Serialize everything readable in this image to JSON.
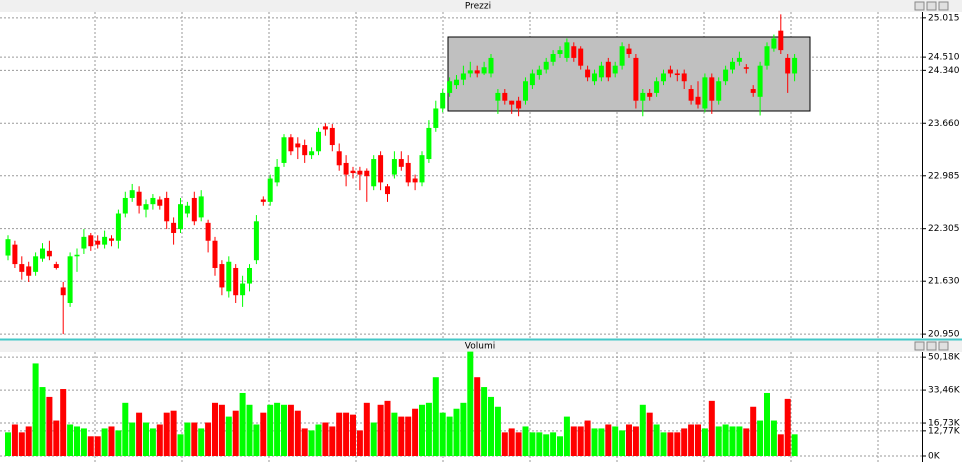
{
  "chart_data": [
    {
      "type": "candlestick",
      "title": "Prezzi",
      "open": [
        21.96,
        22.1,
        21.85,
        21.82,
        21.75,
        21.92,
        22.02,
        21.85,
        21.55,
        21.35,
        21.95,
        22.05,
        22.22,
        22.15,
        22.1,
        22.18,
        22.15,
        22.5,
        22.7,
        22.78,
        22.55,
        22.62,
        22.68,
        22.7,
        22.38,
        22.3,
        22.5,
        22.7,
        22.45,
        22.38,
        22.15,
        21.85,
        21.5,
        21.8,
        21.45,
        21.6,
        21.9,
        22.68,
        22.65,
        22.9,
        23.15,
        23.48,
        23.4,
        23.38,
        23.25,
        23.3,
        23.62,
        23.6,
        23.3,
        23.15,
        23.05,
        23.05,
        23.05,
        22.85,
        23.25,
        22.85,
        23.0,
        23.2,
        23.15,
        22.95,
        22.9,
        23.2,
        23.6,
        23.85,
        24.05,
        24.15,
        24.22,
        24.3,
        24.34,
        24.3,
        24.3,
        23.95,
        24.05,
        23.95,
        23.95,
        23.95,
        24.15,
        24.28,
        24.35,
        24.45,
        24.55,
        24.5,
        24.65,
        24.62,
        24.35,
        24.2,
        24.25,
        24.45,
        24.3,
        24.4,
        24.62,
        24.5,
        23.95,
        24.05,
        24.05,
        24.2,
        24.35,
        24.3,
        24.3,
        24.1,
        24.0,
        23.85,
        24.25,
        23.95,
        24.2,
        24.35,
        24.45,
        24.38,
        24.1,
        24.0,
        24.4,
        24.62,
        24.85,
        24.5,
        24.3
      ],
      "high": [
        22.22,
        22.15,
        21.95,
        21.88,
        22.0,
        22.12,
        22.15,
        21.88,
        21.62,
        22.0,
        22.05,
        22.3,
        22.25,
        22.22,
        22.28,
        22.22,
        22.55,
        22.78,
        22.88,
        22.85,
        22.68,
        22.75,
        22.72,
        22.78,
        22.45,
        22.7,
        22.65,
        22.78,
        22.8,
        22.42,
        22.2,
        21.9,
        21.95,
        21.85,
        21.7,
        21.85,
        22.48,
        22.72,
        23.0,
        23.2,
        23.52,
        23.52,
        23.48,
        23.45,
        23.35,
        23.6,
        23.66,
        23.65,
        23.4,
        23.25,
        23.1,
        23.1,
        23.08,
        23.25,
        23.3,
        22.88,
        23.3,
        23.3,
        23.25,
        23.0,
        23.3,
        23.7,
        23.95,
        24.1,
        24.25,
        24.28,
        24.4,
        24.45,
        24.4,
        24.45,
        24.55,
        24.1,
        24.1,
        23.95,
        24.0,
        24.25,
        24.35,
        24.4,
        24.5,
        24.6,
        24.65,
        24.75,
        24.7,
        24.65,
        24.4,
        24.35,
        24.45,
        24.5,
        24.45,
        24.7,
        24.68,
        24.55,
        24.1,
        24.1,
        24.25,
        24.35,
        24.4,
        24.35,
        24.35,
        24.15,
        24.2,
        24.3,
        24.3,
        24.25,
        24.4,
        24.5,
        24.58,
        24.42,
        24.15,
        24.45,
        24.7,
        24.8,
        25.06,
        24.55,
        24.55
      ],
      "low": [
        21.9,
        21.8,
        21.65,
        21.62,
        21.7,
        21.88,
        21.9,
        21.78,
        20.95,
        21.3,
        21.75,
        21.98,
        22.02,
        22.05,
        22.05,
        22.08,
        22.05,
        22.45,
        22.65,
        22.5,
        22.45,
        22.55,
        22.55,
        22.3,
        22.1,
        22.25,
        22.45,
        22.35,
        22.4,
        22.0,
        21.7,
        21.45,
        21.42,
        21.35,
        21.3,
        21.5,
        21.85,
        22.6,
        22.6,
        22.85,
        23.1,
        23.25,
        23.2,
        23.15,
        23.2,
        23.25,
        23.5,
        23.3,
        23.05,
        22.85,
        22.95,
        22.8,
        22.65,
        22.8,
        22.8,
        22.65,
        22.95,
        23.05,
        22.85,
        22.8,
        22.85,
        23.15,
        23.55,
        23.8,
        24.0,
        24.1,
        24.15,
        24.25,
        24.25,
        24.28,
        24.25,
        23.78,
        23.9,
        23.78,
        23.75,
        23.9,
        24.1,
        24.22,
        24.3,
        24.4,
        24.5,
        24.45,
        24.45,
        24.35,
        24.2,
        24.15,
        24.2,
        24.2,
        24.25,
        24.35,
        24.5,
        23.85,
        23.75,
        23.95,
        24.0,
        24.15,
        24.25,
        24.2,
        24.1,
        23.9,
        23.85,
        23.8,
        23.78,
        23.9,
        24.15,
        24.3,
        24.4,
        24.3,
        24.0,
        23.76,
        24.35,
        24.58,
        24.55,
        24.05,
        24.2
      ],
      "close": [
        22.17,
        21.85,
        21.75,
        21.7,
        21.95,
        22.05,
        21.95,
        21.8,
        21.45,
        21.95,
        21.97,
        22.2,
        22.08,
        22.1,
        22.2,
        22.15,
        22.5,
        22.7,
        22.8,
        22.6,
        22.62,
        22.7,
        22.6,
        22.4,
        22.25,
        22.62,
        22.6,
        22.4,
        22.72,
        22.15,
        21.8,
        21.55,
        21.88,
        21.45,
        21.6,
        21.8,
        22.4,
        22.65,
        22.95,
        23.1,
        23.48,
        23.3,
        23.35,
        23.25,
        23.3,
        23.55,
        23.58,
        23.38,
        23.12,
        23.0,
        23.02,
        23.0,
        22.98,
        23.2,
        22.9,
        22.75,
        23.2,
        23.1,
        22.9,
        22.9,
        23.25,
        23.6,
        23.85,
        24.05,
        24.2,
        24.22,
        24.3,
        24.34,
        24.3,
        24.38,
        24.5,
        24.05,
        23.95,
        23.9,
        23.85,
        24.2,
        24.3,
        24.35,
        24.45,
        24.55,
        24.6,
        24.7,
        24.5,
        24.4,
        24.25,
        24.3,
        24.4,
        24.25,
        24.4,
        24.65,
        24.55,
        23.95,
        24.05,
        24.0,
        24.2,
        24.3,
        24.3,
        24.28,
        24.2,
        23.95,
        23.9,
        24.25,
        23.95,
        24.2,
        24.35,
        24.45,
        24.5,
        24.36,
        24.05,
        24.4,
        24.65,
        24.75,
        24.6,
        24.3,
        24.5
      ],
      "up_color": "#00ff00",
      "down_color": "#ff0000",
      "ylim": [
        20.9,
        25.09
      ],
      "yticks": [
        25.015,
        {
          "value": 24.51,
          "label": "24.510"
        },
        {
          "value": 24.34,
          "label": "24.340"
        },
        {
          "value": 23.66,
          "label": "23.660"
        },
        22.985,
        22.305,
        {
          "value": 21.63,
          "label": "21.630"
        },
        {
          "value": 20.95,
          "label": "20.950"
        }
      ],
      "grid": true
    },
    {
      "type": "bar",
      "title": "Volumi",
      "values": [
        12,
        16,
        12,
        15,
        47,
        35,
        30,
        18,
        34,
        16,
        15,
        14,
        10,
        10,
        14,
        15,
        13,
        27,
        17,
        22,
        17,
        14,
        16,
        22,
        23,
        11,
        17,
        17,
        14,
        17,
        27,
        26,
        20,
        23,
        32,
        26,
        16,
        22,
        26,
        27,
        26,
        26,
        23,
        14,
        13,
        16,
        17,
        15,
        22,
        22,
        21,
        13,
        27,
        17,
        26,
        28,
        22,
        20,
        20,
        24,
        26,
        27,
        40,
        22,
        20,
        24,
        27,
        53,
        40,
        35,
        30,
        25,
        12,
        14,
        12,
        15,
        12,
        12,
        11,
        12,
        10,
        20,
        15,
        15,
        18,
        14,
        14,
        16,
        15,
        13,
        16,
        15,
        26,
        22,
        16,
        12,
        12,
        12,
        14,
        16,
        16,
        14,
        28,
        15,
        16,
        15,
        15,
        14,
        25,
        18,
        32,
        18,
        11,
        29,
        11
      ],
      "ylim": [
        0,
        52.8
      ],
      "yticks": [
        {
          "value": 50.18,
          "label": "50,18K"
        },
        {
          "value": 33.46,
          "label": "33,46K"
        },
        {
          "value": 16.73,
          "label": "16,73K"
        },
        {
          "value": 12.77,
          "label": "12,77K"
        },
        {
          "value": 0,
          "label": "0K"
        }
      ],
      "grid": true
    }
  ]
}
